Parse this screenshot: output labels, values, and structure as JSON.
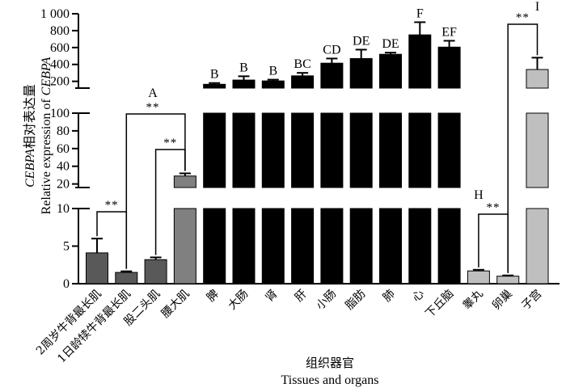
{
  "chart_data": {
    "type": "bar",
    "title": "",
    "ylabel_cn_prefix": "CEBPA",
    "ylabel_cn_suffix": "相对表达量",
    "ylabel_en_prefix": "Relative expression of ",
    "ylabel_en_gene": "CEBPA",
    "xlabel_cn": "组织器官",
    "xlabel_en": "Tissues and organs",
    "axis_segments": [
      {
        "name": "low",
        "ylim": [
          0,
          10
        ],
        "ticks": [
          0,
          5,
          10
        ],
        "tick_labels": [
          "0",
          "5",
          "10"
        ]
      },
      {
        "name": "mid",
        "ylim": [
          16,
          100
        ],
        "ticks": [
          20,
          40,
          60,
          80,
          100
        ],
        "tick_labels": [
          "20",
          "40",
          "60",
          "80",
          "100"
        ]
      },
      {
        "name": "high",
        "ylim": [
          120,
          1000
        ],
        "ticks": [
          200,
          400,
          600,
          800,
          1000
        ],
        "tick_labels": [
          "200",
          "400",
          "600",
          "800",
          "1 000"
        ]
      }
    ],
    "categories": [
      "2周岁牛背最长肌",
      "1日龄犊牛背最长肌",
      "股二头肌",
      "腰大肌",
      "脾",
      "大肠",
      "肾",
      "肝",
      "小肠",
      "脂肪",
      "肺",
      "心",
      "下丘脑",
      "睾丸",
      "卵巢",
      "子宫"
    ],
    "values": [
      4.1,
      1.5,
      3.2,
      29,
      165,
      215,
      205,
      265,
      415,
      470,
      520,
      750,
      605,
      1.7,
      1.0,
      340
    ],
    "errors": [
      1.9,
      0.15,
      0.3,
      3,
      15,
      45,
      15,
      35,
      55,
      105,
      20,
      150,
      75,
      0.15,
      0.1,
      140
    ],
    "colors": [
      "#595959",
      "#595959",
      "#595959",
      "#808080",
      "#000000",
      "#000000",
      "#000000",
      "#000000",
      "#000000",
      "#000000",
      "#000000",
      "#000000",
      "#000000",
      "#bfbfbf",
      "#bfbfbf",
      "#bfbfbf"
    ],
    "letters": [
      "",
      "",
      "",
      "A",
      "B",
      "B",
      "B",
      "BC",
      "CD",
      "DE",
      "DE",
      "F",
      "EF",
      "H",
      "",
      "I"
    ],
    "significance": [
      {
        "from": 0,
        "to": 1,
        "label": "**"
      },
      {
        "from": 2,
        "to": 3,
        "label": "**"
      },
      {
        "from": 1,
        "to": 3,
        "label": "**"
      },
      {
        "from": 13,
        "to": 14,
        "label": "**"
      },
      {
        "from": 14,
        "to": 15,
        "label": "**"
      }
    ]
  }
}
